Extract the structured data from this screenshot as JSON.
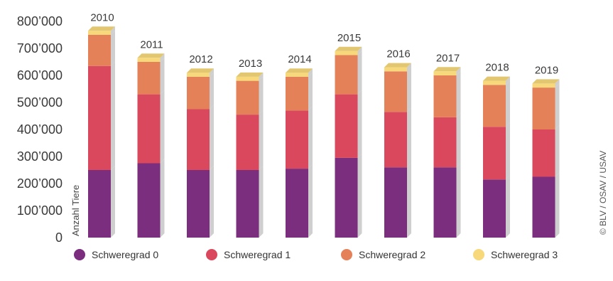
{
  "chart_data": {
    "type": "bar",
    "stacked": true,
    "categories": [
      "2010",
      "2011",
      "2012",
      "2013",
      "2014",
      "2015",
      "2016",
      "2017",
      "2018",
      "2019"
    ],
    "series": [
      {
        "name": "Schweregrad 0",
        "color": "#7b2d7e",
        "values": [
          250000,
          275000,
          250000,
          250000,
          255000,
          295000,
          260000,
          260000,
          215000,
          225000
        ]
      },
      {
        "name": "Schweregrad 1",
        "color": "#d9485d",
        "values": [
          385000,
          255000,
          225000,
          205000,
          215000,
          235000,
          205000,
          185000,
          195000,
          175000
        ]
      },
      {
        "name": "Schweregrad 2",
        "color": "#e58159",
        "values": [
          115000,
          120000,
          120000,
          125000,
          125000,
          145000,
          150000,
          155000,
          155000,
          155000
        ]
      },
      {
        "name": "Schweregrad 3",
        "color": "#f7d87a",
        "values": [
          15000,
          15000,
          15000,
          15000,
          15000,
          15000,
          15000,
          15000,
          15000,
          15000
        ]
      }
    ],
    "ylabel": "Anzahl Tiere",
    "yticks": [
      "800’000",
      "700’000",
      "600’000",
      "500’000",
      "400’000",
      "300’000",
      "200’000",
      "100’000",
      "0"
    ],
    "ylim": [
      0,
      800000
    ],
    "grid": false,
    "legend_position": "bottom"
  },
  "credit": "© BLV / OSAV / USAV"
}
